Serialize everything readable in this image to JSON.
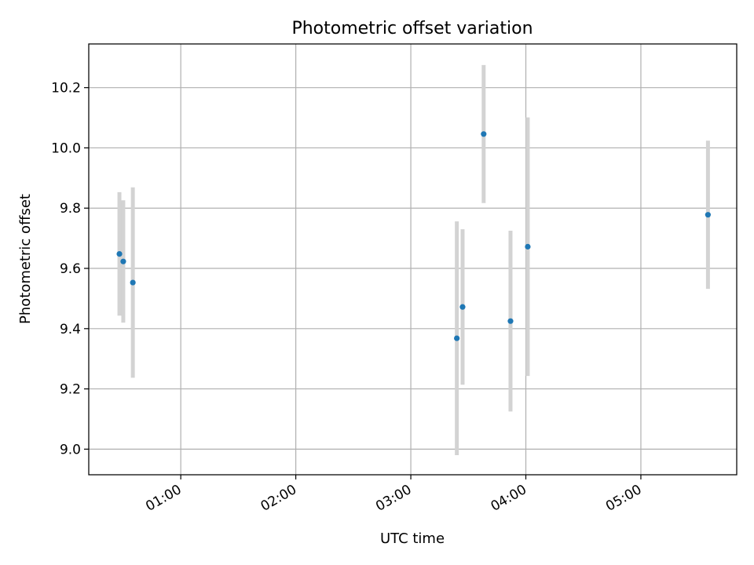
{
  "chart_data": {
    "type": "scatter",
    "title": "Photometric offset variation",
    "xlabel": "UTC time",
    "ylabel": "Photometric offset",
    "x_axis_kind": "time",
    "xlim": [
      "00:12",
      "05:50"
    ],
    "ylim": [
      8.915,
      10.345
    ],
    "x_ticks": [
      "01:00",
      "02:00",
      "03:00",
      "04:00",
      "05:00"
    ],
    "y_ticks": [
      9.0,
      9.2,
      9.4,
      9.6,
      9.8,
      10.0,
      10.2
    ],
    "y_tick_labels": [
      "9.0",
      "9.2",
      "9.4",
      "9.6",
      "9.8",
      "10.0",
      "10.2"
    ],
    "grid": true,
    "point_color": "#1f77b4",
    "errorbar_color": "#d3d3d3",
    "points": [
      {
        "x": "00:28",
        "y": 9.648,
        "ylow": 9.443,
        "yhigh": 9.853
      },
      {
        "x": "00:30",
        "y": 9.623,
        "ylow": 9.42,
        "yhigh": 9.826
      },
      {
        "x": "00:35",
        "y": 9.553,
        "ylow": 9.237,
        "yhigh": 9.869
      },
      {
        "x": "03:24",
        "y": 9.368,
        "ylow": 8.98,
        "yhigh": 9.756
      },
      {
        "x": "03:27",
        "y": 9.472,
        "ylow": 9.214,
        "yhigh": 9.73
      },
      {
        "x": "03:38",
        "y": 10.046,
        "ylow": 9.817,
        "yhigh": 10.275
      },
      {
        "x": "03:52",
        "y": 9.425,
        "ylow": 9.125,
        "yhigh": 9.725
      },
      {
        "x": "04:01",
        "y": 9.672,
        "ylow": 9.243,
        "yhigh": 10.101
      },
      {
        "x": "05:35",
        "y": 9.778,
        "ylow": 9.532,
        "yhigh": 10.024
      }
    ]
  }
}
